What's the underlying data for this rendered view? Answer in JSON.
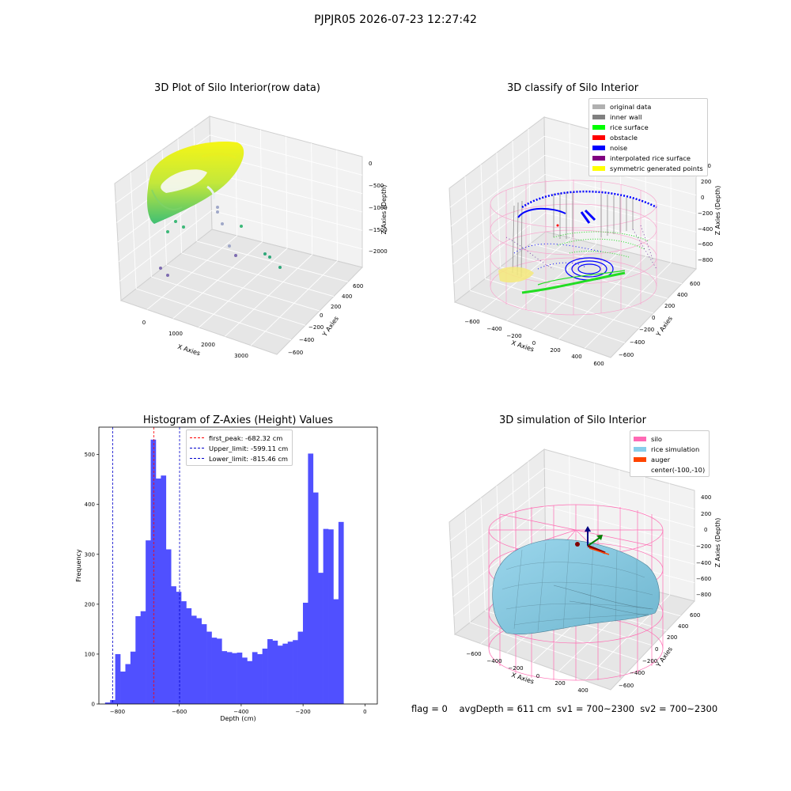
{
  "figure": {
    "suptitle": "PJPJR05 2026-07-23 12:27:42",
    "status_line": "flag = 0    avgDepth = 611 cm  sv1 = 700~2300  sv2 = 700~2300"
  },
  "panels": {
    "raw": {
      "title": "3D Plot of Silo Interior(row data)",
      "x_label": "X Axies",
      "y_label": "Y Axies",
      "z_label": "Z Axies (Depth)",
      "x_ticks": [
        "0",
        "1000",
        "2000",
        "3000"
      ],
      "y_ticks": [
        "−600",
        "−400",
        "−200",
        "0",
        "200",
        "400",
        "600"
      ],
      "z_ticks": [
        "0",
        "−500",
        "−1000",
        "−1500",
        "−2000"
      ]
    },
    "classify": {
      "title": "3D classify of Silo Interior",
      "x_label": "X Axies",
      "y_label": "Y Axies",
      "z_label": "Z Axies (Depth)",
      "x_ticks": [
        "−600",
        "−400",
        "−200",
        "0",
        "200",
        "400",
        "600"
      ],
      "y_ticks": [
        "−600",
        "−400",
        "−200",
        "0",
        "200",
        "400",
        "600"
      ],
      "z_ticks": [
        "200",
        "0",
        "−200",
        "−400",
        "−600",
        "−800"
      ],
      "z_top_partial": "00",
      "legend": [
        {
          "label": "original data",
          "color": "#b0b0b0"
        },
        {
          "label": "inner wall",
          "color": "#808080"
        },
        {
          "label": "rice surface",
          "color": "#00ff00"
        },
        {
          "label": "obstacle",
          "color": "#ff0000"
        },
        {
          "label": "noise",
          "color": "#0000ff"
        },
        {
          "label": "interpolated rice surface",
          "color": "#800080"
        },
        {
          "label": "symmetric generated points",
          "color": "#ffff00"
        }
      ]
    },
    "simulation": {
      "title": "3D simulation of Silo Interior",
      "x_label": "X Axies",
      "y_label": "Y Axies",
      "z_label": "Z Axies (Depth)",
      "x_ticks": [
        "−600",
        "−400",
        "−200",
        "0",
        "200",
        "400"
      ],
      "y_ticks": [
        "−600",
        "−400",
        "−200",
        "0",
        "200",
        "400",
        "600"
      ],
      "z_ticks": [
        "400",
        "200",
        "0",
        "−200",
        "−400",
        "−600",
        "−800"
      ],
      "legend": [
        {
          "label": "silo",
          "color": "#ff69b4"
        },
        {
          "label": "rice simulation",
          "color": "#87ceeb"
        },
        {
          "label": "auger",
          "color": "#ff4500"
        },
        {
          "label": "center(-100,-10)",
          "color": ""
        }
      ]
    }
  },
  "chart_data": [
    {
      "type": "scatter",
      "title": "3D Plot of Silo Interior(row data)",
      "xlabel": "X Axies",
      "ylabel": "Y Axies",
      "zlabel": "Z Axies (Depth)",
      "xlim": [
        -500,
        3500
      ],
      "ylim": [
        -700,
        700
      ],
      "zlim": [
        -2300,
        200
      ],
      "grid": true,
      "colormap": "viridis by depth",
      "description_series": [
        {
          "name": "",
          "shape": "ring of points near z 0 to -500",
          "color_range": [
            "#3cb878",
            "#f2f20a"
          ]
        }
      ]
    },
    {
      "type": "scatter",
      "title": "3D classify of Silo Interior",
      "xlabel": "X Axies",
      "ylabel": "Y Axies",
      "zlabel": "Z Axies (Depth)",
      "xlim": [
        -700,
        700
      ],
      "ylim": [
        -700,
        700
      ],
      "zlim": [
        -900,
        300
      ],
      "grid": true,
      "legend_position": "top-right",
      "series": [
        {
          "name": "original data",
          "color": "#b0b0b0"
        },
        {
          "name": "inner wall",
          "color": "#808080"
        },
        {
          "name": "rice surface",
          "color": "#00ff00"
        },
        {
          "name": "obstacle",
          "color": "#ff0000"
        },
        {
          "name": "noise",
          "color": "#0000ff"
        },
        {
          "name": "interpolated rice surface",
          "color": "#800080"
        },
        {
          "name": "symmetric generated points",
          "color": "#ffff00"
        }
      ]
    },
    {
      "type": "bar",
      "title": "Histogram of Z-Axies (Height) Values",
      "xlabel": "Depth (cm)",
      "ylabel": "Frequency",
      "xlim": [
        -860,
        40
      ],
      "ylim": [
        0,
        555
      ],
      "x_ticks": [
        -800,
        -600,
        -400,
        -200,
        0
      ],
      "y_ticks": [
        0,
        100,
        200,
        300,
        400,
        500
      ],
      "bin_start": -840,
      "bin_width": 16.4,
      "values": [
        3,
        8,
        100,
        65,
        80,
        105,
        176,
        186,
        328,
        530,
        452,
        458,
        310,
        236,
        225,
        206,
        192,
        177,
        172,
        160,
        145,
        133,
        131,
        106,
        104,
        102,
        103,
        93,
        86,
        104,
        100,
        111,
        130,
        127,
        117,
        121,
        125,
        128,
        145,
        203,
        502,
        424,
        263,
        351,
        350,
        210,
        365
      ],
      "bar_color": "#5050ff",
      "legend_position": "top",
      "lines": [
        {
          "label": "first_peak: -682.32 cm",
          "x": -682.32,
          "color": "#ff0000",
          "style": "dashed"
        },
        {
          "label": "Upper_limit: -599.11 cm",
          "x": -599.11,
          "color": "#0000cc",
          "style": "dashed"
        },
        {
          "label": "Lower_limit: -815.46 cm",
          "x": -815.46,
          "color": "#0000cc",
          "style": "dashed"
        }
      ]
    },
    {
      "type": "surface",
      "title": "3D simulation of Silo Interior",
      "xlabel": "X Axies",
      "ylabel": "Y Axies",
      "zlabel": "Z Axies (Depth)",
      "xlim": [
        -700,
        500
      ],
      "ylim": [
        -700,
        700
      ],
      "zlim": [
        -900,
        500
      ],
      "grid": true,
      "legend_position": "top-right",
      "series": [
        {
          "name": "silo",
          "color": "#ff69b4"
        },
        {
          "name": "rice simulation",
          "color": "#87ceeb"
        },
        {
          "name": "auger",
          "color": "#ff4500"
        },
        {
          "name": "center(-100,-10)",
          "color": ""
        }
      ]
    }
  ]
}
